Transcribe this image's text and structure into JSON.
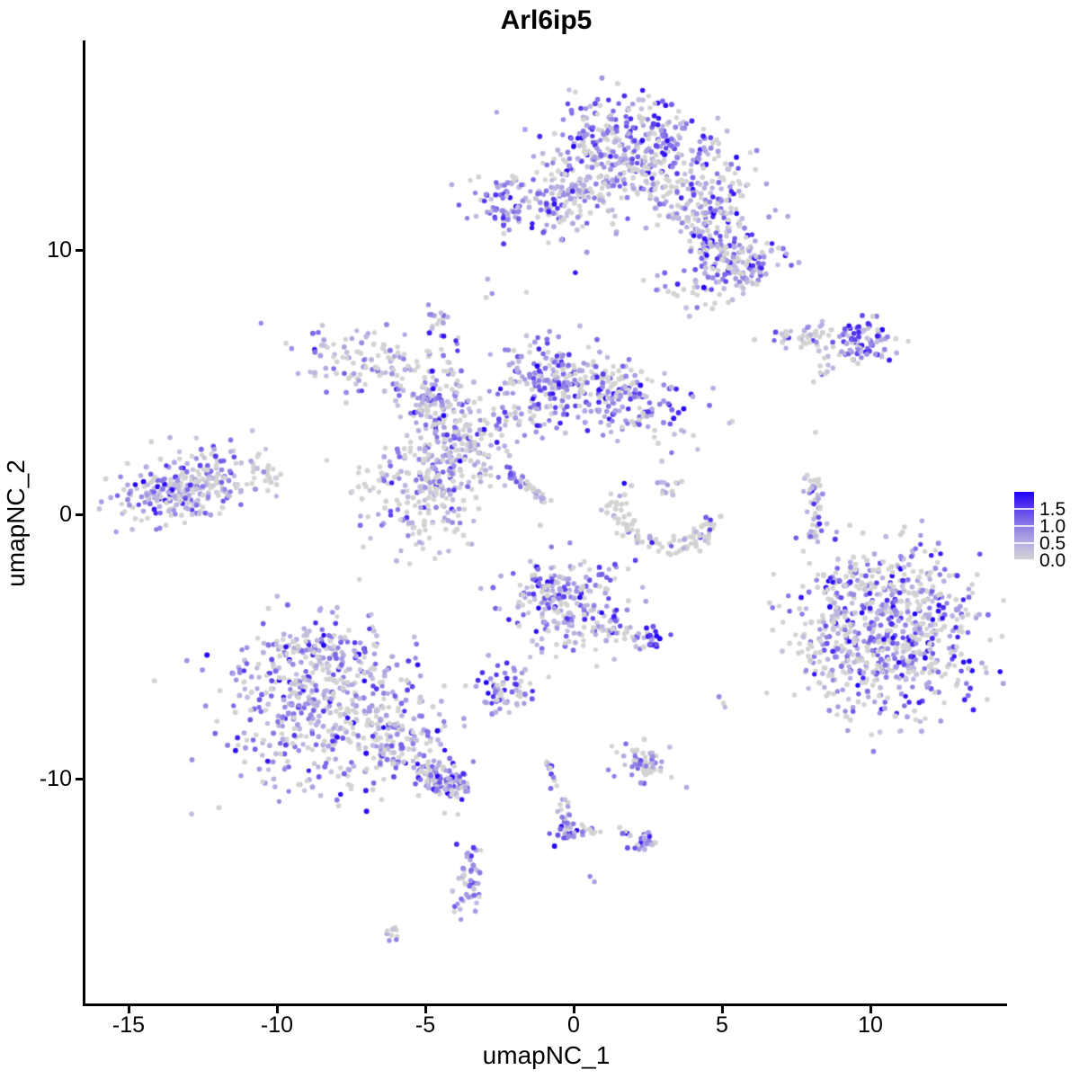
{
  "title": "Arl6ip5",
  "axes": {
    "x": {
      "label": "umapNC_1",
      "ticks": [
        -15,
        -10,
        -5,
        0,
        5,
        10
      ]
    },
    "y": {
      "label": "umapNC_2",
      "ticks": [
        10,
        0,
        -10
      ]
    }
  },
  "legend": {
    "tick_values": [
      1.5,
      1.0,
      0.5,
      0.0
    ],
    "labels": [
      "1.5",
      "1.0",
      "0.5",
      "0.0"
    ],
    "min": 0.0,
    "max": 2.0
  },
  "colors": {
    "background": "#FFFFFF",
    "axis": "#000000",
    "low": "#D3D3D3",
    "high": "#1C00FA",
    "gradient_stops": [
      [
        0.0,
        "#D3D3D3"
      ],
      [
        0.35,
        "#C0BADF"
      ],
      [
        0.7,
        "#A89CE3"
      ],
      [
        1.05,
        "#8A77E7"
      ],
      [
        1.4,
        "#6A4EEB"
      ],
      [
        1.7,
        "#4524F2"
      ],
      [
        2.0,
        "#1C00FA"
      ]
    ]
  },
  "chart_data": {
    "type": "scatter",
    "title": "Arl6ip5",
    "xlabel": "umapNC_1",
    "ylabel": "umapNC_2",
    "xlim": [
      -16.4,
      14.6
    ],
    "ylim": [
      -18.6,
      17.9
    ],
    "legend_title_values": "expression 0.0 to 2.0",
    "point_radius": 2.8,
    "seed": 42,
    "expr_bins": {
      "zero": [
        0,
        0
      ],
      "low": [
        0.18,
        0.62
      ],
      "mid": [
        0.62,
        1.25
      ],
      "high": [
        1.25,
        2.0
      ]
    },
    "clusters": [
      {
        "name": "top-core",
        "type": "gauss",
        "cx": 2.05,
        "cy": 14.1,
        "sx": 1.45,
        "sy": 0.8,
        "rot": -8,
        "n": 300,
        "mix": [
          0.28,
          0.24,
          0.3,
          0.18
        ]
      },
      {
        "name": "top-lower-fringe",
        "type": "gauss",
        "cx": 1.7,
        "cy": 12.6,
        "sx": 1.65,
        "sy": 0.7,
        "rot": 0,
        "n": 170,
        "mix": [
          0.42,
          0.28,
          0.22,
          0.08
        ]
      },
      {
        "name": "top-arm",
        "type": "line",
        "x1": 3.6,
        "y1": 11.6,
        "x2": 5.6,
        "y2": 9.2,
        "jit": 0.45,
        "n": 120,
        "mix": [
          0.3,
          0.28,
          0.28,
          0.14
        ]
      },
      {
        "name": "top-right-lobe",
        "type": "gauss",
        "cx": 5.0,
        "cy": 11.8,
        "sx": 0.85,
        "sy": 0.6,
        "rot": -25,
        "n": 80,
        "mix": [
          0.3,
          0.3,
          0.28,
          0.12
        ]
      },
      {
        "name": "top-lowerright-blob",
        "type": "gauss",
        "cx": 5.6,
        "cy": 9.5,
        "sx": 0.7,
        "sy": 0.6,
        "rot": 0,
        "n": 85,
        "mix": [
          0.22,
          0.26,
          0.32,
          0.2
        ]
      },
      {
        "name": "top-belowarm-sparse",
        "type": "gauss",
        "cx": 4.1,
        "cy": 8.6,
        "sx": 0.75,
        "sy": 0.5,
        "rot": 0,
        "n": 35,
        "mix": [
          0.55,
          0.25,
          0.15,
          0.05
        ]
      },
      {
        "name": "top-left-lobe",
        "type": "gauss",
        "cx": -1.0,
        "cy": 11.7,
        "sx": 1.3,
        "sy": 0.6,
        "rot": -5,
        "n": 105,
        "mix": [
          0.25,
          0.25,
          0.3,
          0.2
        ]
      },
      {
        "name": "top-left-hot",
        "type": "gauss",
        "cx": -2.55,
        "cy": 11.6,
        "sx": 0.35,
        "sy": 0.55,
        "rot": 0,
        "n": 40,
        "mix": [
          0.1,
          0.15,
          0.3,
          0.45
        ]
      },
      {
        "name": "top-neck",
        "type": "line",
        "x1": -0.3,
        "y1": 11.9,
        "x2": 0.8,
        "y2": 12.6,
        "jit": 0.3,
        "n": 25,
        "mix": [
          0.4,
          0.3,
          0.2,
          0.1
        ]
      },
      {
        "name": "trail-tiny",
        "type": "points",
        "pts": [
          [
            -2.9,
            8.9,
            0.5
          ],
          [
            -2.75,
            8.35,
            0.8
          ],
          [
            -2.95,
            8.2,
            0
          ]
        ]
      },
      {
        "name": "small-blob-left",
        "type": "gauss",
        "cx": -4.6,
        "cy": 7.5,
        "sx": 0.22,
        "sy": 0.35,
        "rot": 0,
        "n": 16,
        "mix": [
          0.25,
          0.2,
          0.25,
          0.3
        ]
      },
      {
        "name": "right-line",
        "type": "line",
        "x1": 6.7,
        "y1": 6.6,
        "x2": 8.9,
        "y2": 6.8,
        "jit": 0.3,
        "n": 45,
        "mix": [
          0.45,
          0.3,
          0.18,
          0.07
        ]
      },
      {
        "name": "right-line-dense",
        "type": "gauss",
        "cx": 9.75,
        "cy": 6.6,
        "sx": 0.55,
        "sy": 0.42,
        "rot": 0,
        "n": 85,
        "mix": [
          0.18,
          0.22,
          0.3,
          0.3
        ]
      },
      {
        "name": "right-line-tail",
        "type": "line",
        "x1": 8.55,
        "y1": 6.3,
        "x2": 8.4,
        "y2": 4.9,
        "jit": 0.15,
        "n": 10,
        "mix": [
          0.5,
          0.3,
          0.2,
          0
        ]
      },
      {
        "name": "mid-nw-blob",
        "type": "gauss",
        "cx": -6.4,
        "cy": 5.5,
        "sx": 1.5,
        "sy": 0.65,
        "rot": -18,
        "n": 150,
        "mix": [
          0.42,
          0.3,
          0.22,
          0.06
        ]
      },
      {
        "name": "mid-nw-arm",
        "type": "line",
        "x1": -5.1,
        "y1": 4.5,
        "x2": -4.4,
        "y2": 3.6,
        "jit": 0.3,
        "n": 45,
        "mix": [
          0.35,
          0.3,
          0.25,
          0.1
        ]
      },
      {
        "name": "mid-central-node",
        "type": "gauss",
        "cx": -4.35,
        "cy": 3.1,
        "sx": 0.6,
        "sy": 0.8,
        "rot": 0,
        "n": 80,
        "mix": [
          0.3,
          0.28,
          0.3,
          0.12
        ]
      },
      {
        "name": "mid-strand-up",
        "type": "line",
        "x1": -4.05,
        "y1": 3.9,
        "x2": -3.9,
        "y2": 6.4,
        "jit": 0.18,
        "n": 22,
        "mix": [
          0.35,
          0.3,
          0.25,
          0.1
        ]
      },
      {
        "name": "mid-n-blob",
        "type": "gauss",
        "cx": -0.95,
        "cy": 5.0,
        "sx": 0.8,
        "sy": 1.1,
        "rot": 10,
        "n": 170,
        "mix": [
          0.2,
          0.24,
          0.34,
          0.22
        ]
      },
      {
        "name": "mid-ne-blob",
        "type": "gauss",
        "cx": 1.55,
        "cy": 4.2,
        "sx": 1.25,
        "sy": 0.7,
        "rot": -12,
        "n": 160,
        "mix": [
          0.22,
          0.26,
          0.32,
          0.2
        ]
      },
      {
        "name": "mid-ne-grey-cap",
        "type": "gauss",
        "cx": 1.3,
        "cy": 5.1,
        "sx": 0.8,
        "sy": 0.3,
        "rot": -10,
        "n": 40,
        "mix": [
          0.65,
          0.2,
          0.12,
          0.03
        ]
      },
      {
        "name": "mid-link",
        "type": "line",
        "x1": -3.7,
        "y1": 2.7,
        "x2": -1.6,
        "y2": 3.9,
        "jit": 0.35,
        "n": 55,
        "mix": [
          0.4,
          0.28,
          0.24,
          0.08
        ]
      },
      {
        "name": "mid-s-blob",
        "type": "gauss",
        "cx": -5.25,
        "cy": 0.75,
        "sx": 1.05,
        "sy": 1.2,
        "rot": 0,
        "n": 180,
        "mix": [
          0.55,
          0.25,
          0.15,
          0.05
        ]
      },
      {
        "name": "mid-column",
        "type": "line",
        "x1": -4.1,
        "y1": 2.8,
        "x2": -4.6,
        "y2": 0.9,
        "jit": 0.35,
        "n": 55,
        "mix": [
          0.35,
          0.3,
          0.25,
          0.1
        ]
      },
      {
        "name": "mid-streak-top",
        "type": "line",
        "x1": -2.25,
        "y1": 1.75,
        "x2": -1.7,
        "y2": 1.2,
        "jit": 0.1,
        "n": 22,
        "mix": [
          0.1,
          0.2,
          0.4,
          0.3
        ]
      },
      {
        "name": "mid-streak-bottom",
        "type": "line",
        "x1": -1.65,
        "y1": 1.15,
        "x2": -0.95,
        "y2": 0.55,
        "jit": 0.1,
        "n": 22,
        "mix": [
          0.7,
          0.2,
          0.1,
          0
        ]
      },
      {
        "name": "mid-gap-scatter",
        "type": "gauss",
        "cx": -3.1,
        "cy": 1.9,
        "sx": 0.5,
        "sy": 0.5,
        "rot": 0,
        "n": 25,
        "mix": [
          0.5,
          0.25,
          0.2,
          0.05
        ]
      },
      {
        "name": "left-main",
        "type": "gauss",
        "cx": -12.9,
        "cy": 1.2,
        "sx": 1.3,
        "sy": 0.62,
        "rot": 12,
        "n": 210,
        "mix": [
          0.45,
          0.28,
          0.2,
          0.07
        ]
      },
      {
        "name": "left-dense",
        "type": "gauss",
        "cx": -13.6,
        "cy": 0.6,
        "sx": 0.8,
        "sy": 0.45,
        "rot": 10,
        "n": 70,
        "mix": [
          0.25,
          0.35,
          0.28,
          0.12
        ]
      },
      {
        "name": "left-tip",
        "type": "line",
        "x1": -11.0,
        "y1": 1.7,
        "x2": -10.2,
        "y2": 1.4,
        "jit": 0.25,
        "n": 18,
        "mix": [
          0.7,
          0.2,
          0.1,
          0
        ]
      },
      {
        "name": "arc-grey",
        "type": "arc",
        "cx": 3.2,
        "cy": 0.55,
        "rx": 1.75,
        "ry": 1.75,
        "a0": 165,
        "a1": 345,
        "jit": 0.22,
        "n": 105,
        "mix": [
          0.72,
          0.15,
          0.09,
          0.04
        ]
      },
      {
        "name": "arc-top-knot",
        "type": "gauss",
        "cx": 3.05,
        "cy": 1.05,
        "sx": 0.25,
        "sy": 0.2,
        "rot": 0,
        "n": 12,
        "mix": [
          0.3,
          0.4,
          0.3,
          0
        ]
      },
      {
        "name": "slim-vertical",
        "type": "line",
        "x1": 8.05,
        "y1": 1.35,
        "x2": 8.2,
        "y2": -0.6,
        "jit": 0.17,
        "n": 40,
        "mix": [
          0.45,
          0.32,
          0.18,
          0.05
        ]
      },
      {
        "name": "slim-curl",
        "type": "line",
        "x1": 8.2,
        "y1": -0.65,
        "x2": 7.9,
        "y2": -1.05,
        "jit": 0.12,
        "n": 10,
        "mix": [
          0.45,
          0.32,
          0.18,
          0.05
        ]
      },
      {
        "name": "right-big-main",
        "type": "gauss",
        "cx": 10.9,
        "cy": -4.4,
        "sx": 1.45,
        "sy": 1.5,
        "rot": 0,
        "n": 560,
        "mix": [
          0.36,
          0.2,
          0.26,
          0.18
        ]
      },
      {
        "name": "right-big-left-fringe",
        "type": "gauss",
        "cx": 8.7,
        "cy": -4.9,
        "sx": 0.85,
        "sy": 1.5,
        "rot": 15,
        "n": 130,
        "mix": [
          0.62,
          0.2,
          0.13,
          0.05
        ]
      },
      {
        "name": "right-big-top-fringe",
        "type": "gauss",
        "cx": 10.6,
        "cy": -2.4,
        "sx": 1.2,
        "sy": 0.45,
        "rot": 0,
        "n": 60,
        "mix": [
          0.6,
          0.2,
          0.15,
          0.05
        ]
      },
      {
        "name": "center-blob",
        "type": "gauss",
        "cx": -0.1,
        "cy": -3.4,
        "sx": 1.05,
        "sy": 0.95,
        "rot": -15,
        "n": 190,
        "mix": [
          0.32,
          0.26,
          0.28,
          0.14
        ]
      },
      {
        "name": "center-blob-hot",
        "type": "gauss",
        "cx": -0.7,
        "cy": -2.9,
        "sx": 0.45,
        "sy": 0.5,
        "rot": 0,
        "n": 45,
        "mix": [
          0.15,
          0.25,
          0.35,
          0.25
        ]
      },
      {
        "name": "center-arm",
        "type": "line",
        "x1": 0.8,
        "y1": -4.3,
        "x2": 2.3,
        "y2": -4.7,
        "jit": 0.2,
        "n": 22,
        "mix": [
          0.55,
          0.25,
          0.15,
          0.05
        ]
      },
      {
        "name": "center-se-knot",
        "type": "gauss",
        "cx": 2.6,
        "cy": -4.75,
        "sx": 0.22,
        "sy": 0.28,
        "rot": 0,
        "n": 26,
        "mix": [
          0.08,
          0.17,
          0.4,
          0.35
        ]
      },
      {
        "name": "small-dense-mid",
        "type": "gauss",
        "cx": -2.4,
        "cy": -6.65,
        "sx": 0.5,
        "sy": 0.42,
        "rot": 0,
        "n": 65,
        "mix": [
          0.15,
          0.25,
          0.35,
          0.25
        ]
      },
      {
        "name": "bl-main",
        "type": "gauss",
        "cx": -8.3,
        "cy": -7.3,
        "sx": 1.7,
        "sy": 1.55,
        "rot": 0,
        "n": 520,
        "mix": [
          0.3,
          0.28,
          0.3,
          0.12
        ]
      },
      {
        "name": "bl-top-knob",
        "type": "gauss",
        "cx": -8.9,
        "cy": -5.2,
        "sx": 0.75,
        "sy": 0.55,
        "rot": 0,
        "n": 85,
        "mix": [
          0.22,
          0.28,
          0.32,
          0.18
        ]
      },
      {
        "name": "bl-right-edge",
        "type": "gauss",
        "cx": -6.0,
        "cy": -8.6,
        "sx": 0.8,
        "sy": 0.8,
        "rot": 0,
        "n": 90,
        "mix": [
          0.35,
          0.3,
          0.25,
          0.1
        ]
      },
      {
        "name": "bl-tail",
        "type": "line",
        "x1": -5.3,
        "y1": -9.5,
        "x2": -3.85,
        "y2": -10.35,
        "jit": 0.3,
        "n": 80,
        "mix": [
          0.25,
          0.3,
          0.3,
          0.15
        ]
      },
      {
        "name": "bl-tail-end",
        "type": "gauss",
        "cx": -4.1,
        "cy": -10.2,
        "sx": 0.35,
        "sy": 0.3,
        "rot": 0,
        "n": 40,
        "mix": [
          0.12,
          0.3,
          0.4,
          0.18
        ]
      },
      {
        "name": "bl-below-pair",
        "type": "points",
        "pts": [
          [
            -4.35,
            -11.3,
            0
          ],
          [
            -3.9,
            -11.35,
            0
          ]
        ]
      },
      {
        "name": "tiny-right",
        "type": "points",
        "pts": [
          [
            4.9,
            -6.9,
            0.9
          ],
          [
            5.1,
            -7.3,
            0.4
          ],
          [
            5.05,
            -7.15,
            0
          ]
        ]
      },
      {
        "name": "blob-lower-mid",
        "type": "gauss",
        "cx": 2.35,
        "cy": -9.4,
        "sx": 0.55,
        "sy": 0.35,
        "rot": -10,
        "n": 60,
        "mix": [
          0.45,
          0.3,
          0.2,
          0.05
        ]
      },
      {
        "name": "trail-down",
        "type": "line",
        "x1": -0.85,
        "y1": -9.3,
        "x2": -0.2,
        "y2": -11.6,
        "jit": 0.12,
        "n": 20,
        "mix": [
          0.3,
          0.3,
          0.3,
          0.1
        ]
      },
      {
        "name": "elbow",
        "type": "gauss",
        "cx": -0.15,
        "cy": -11.95,
        "sx": 0.28,
        "sy": 0.3,
        "rot": 0,
        "n": 30,
        "mix": [
          0.12,
          0.25,
          0.38,
          0.25
        ]
      },
      {
        "name": "elbow-right",
        "type": "line",
        "x1": 0.2,
        "y1": -11.9,
        "x2": 1.0,
        "y2": -12.1,
        "jit": 0.1,
        "n": 9,
        "mix": [
          0.75,
          0.15,
          0.1,
          0
        ]
      },
      {
        "name": "knot-low",
        "type": "gauss",
        "cx": 2.3,
        "cy": -12.35,
        "sx": 0.3,
        "sy": 0.22,
        "rot": 0,
        "n": 30,
        "mix": [
          0.15,
          0.2,
          0.35,
          0.3
        ]
      },
      {
        "name": "knot-low-leadin",
        "type": "points",
        "pts": [
          [
            1.75,
            -12.0,
            0
          ],
          [
            1.9,
            -12.15,
            0.2
          ],
          [
            1.55,
            -11.85,
            0
          ]
        ]
      },
      {
        "name": "bottom-small",
        "type": "gauss",
        "cx": -3.55,
        "cy": -13.9,
        "sx": 0.28,
        "sy": 0.72,
        "rot": 0,
        "n": 48,
        "mix": [
          0.15,
          0.28,
          0.35,
          0.22
        ]
      },
      {
        "name": "tiny-bottom",
        "type": "gauss",
        "cx": -6.1,
        "cy": -15.9,
        "sx": 0.22,
        "sy": 0.18,
        "rot": 0,
        "n": 9,
        "mix": [
          0.5,
          0.3,
          0.2,
          0
        ]
      },
      {
        "name": "pair-bottom",
        "type": "points",
        "pts": [
          [
            0.55,
            -13.7,
            0.9
          ],
          [
            0.7,
            -13.9,
            0.7
          ]
        ]
      },
      {
        "name": "singles",
        "type": "points",
        "pts": [
          [
            8.15,
            3.1,
            0
          ],
          [
            7.95,
            -1.85,
            0
          ]
        ]
      }
    ]
  }
}
